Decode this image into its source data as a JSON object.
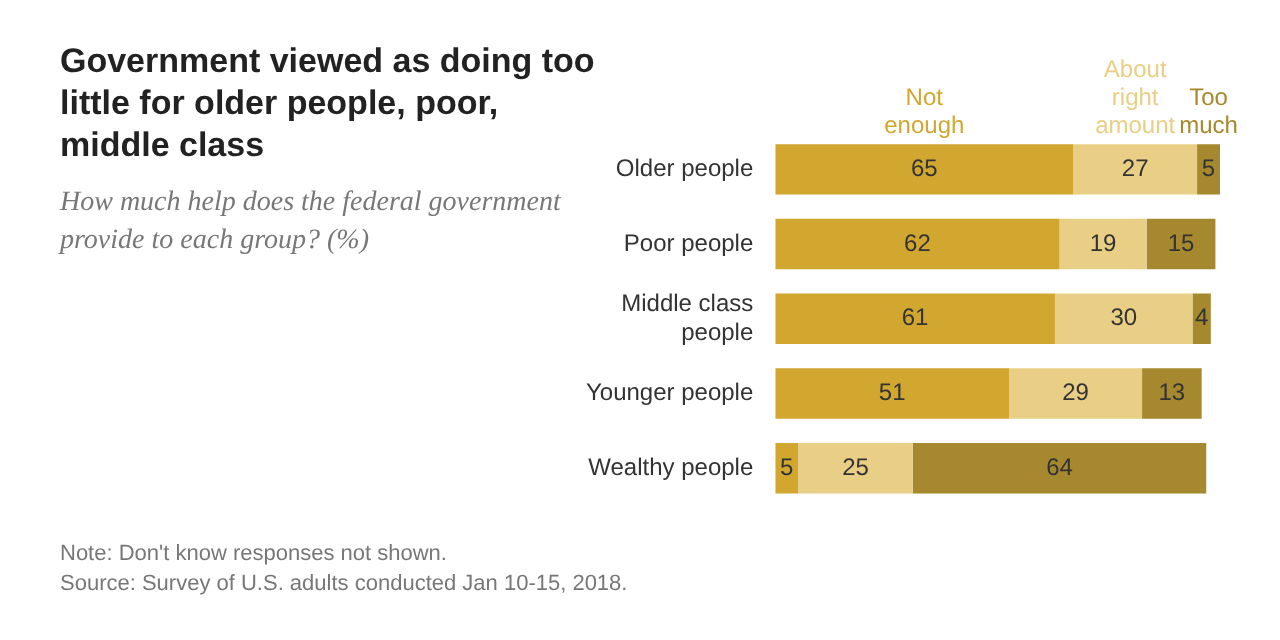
{
  "chart_data": {
    "type": "bar",
    "orientation": "horizontal",
    "stacked": true,
    "data_labels": true,
    "legend": false,
    "title": "Government viewed as doing too little for older people, poor, middle class",
    "subtitle": "How much help does the federal government provide to each group? (%)",
    "categories": [
      "Older people",
      "Poor people",
      "Middle class people",
      "Younger people",
      "Wealthy people"
    ],
    "series": [
      {
        "name": "Not enough",
        "color": "#d1a730",
        "values": [
          65,
          62,
          61,
          51,
          5
        ]
      },
      {
        "name": "About right amount",
        "color": "#e8cf85",
        "values": [
          27,
          19,
          30,
          29,
          25
        ]
      },
      {
        "name": "Too much",
        "color": "#a6892f",
        "values": [
          5,
          15,
          4,
          13,
          64
        ]
      }
    ],
    "annotations": [
      "Note: Don't know responses not shown.",
      "Source: Survey of U.S. adults conducted Jan 10-15, 2018."
    ]
  }
}
